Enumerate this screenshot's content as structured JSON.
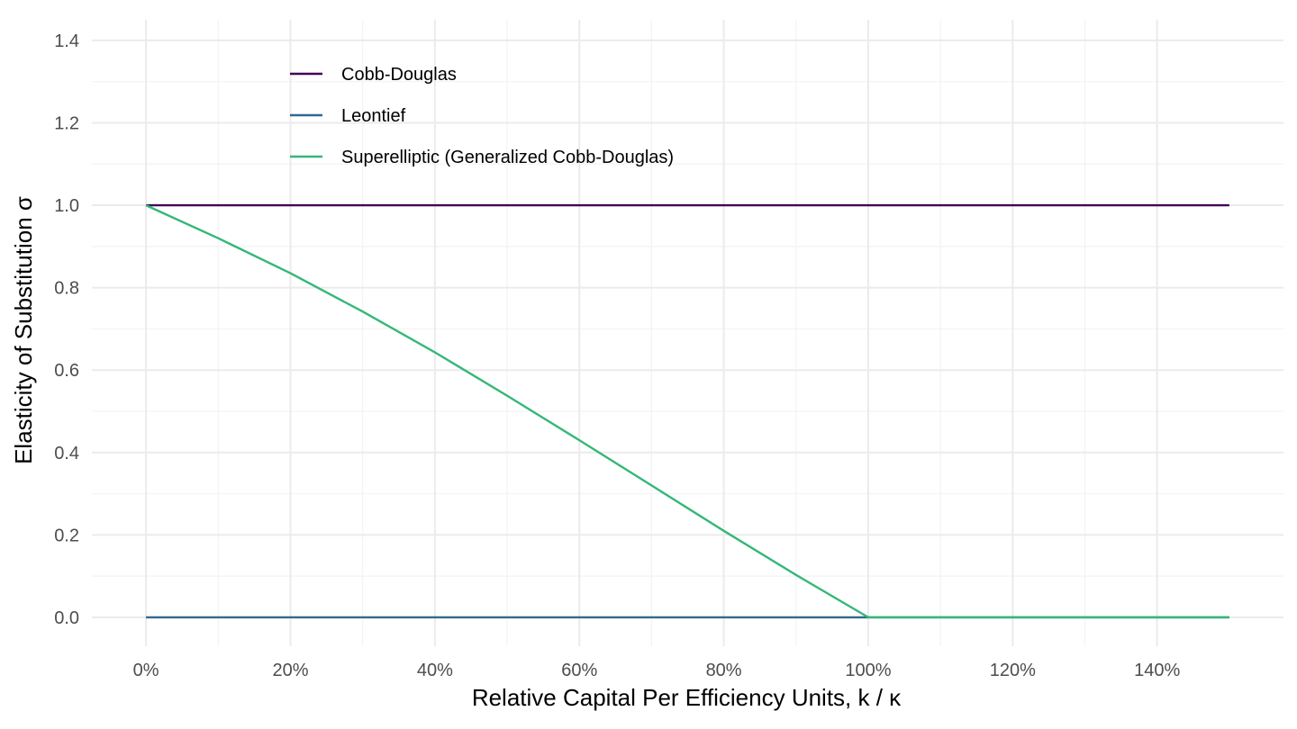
{
  "chart_data": {
    "type": "line",
    "title": "",
    "xlabel": "Relative Capital Per Efficiency Units, k / κ",
    "ylabel": "Elasticity of Substitution  σ",
    "xlim": [
      -0.075,
      1.575
    ],
    "ylim": [
      -0.07,
      1.45
    ],
    "x_ticks": [
      0,
      0.2,
      0.4,
      0.6,
      0.8,
      1.0,
      1.2,
      1.4
    ],
    "x_tick_labels": [
      "0%",
      "20%",
      "40%",
      "60%",
      "80%",
      "100%",
      "120%",
      "140%"
    ],
    "y_ticks": [
      0,
      0.2,
      0.4,
      0.6,
      0.8,
      1.0,
      1.2,
      1.4
    ],
    "y_tick_labels": [
      "0.0",
      "0.2",
      "0.4",
      "0.6",
      "0.8",
      "1.0",
      "1.2",
      "1.4"
    ],
    "grid": true,
    "legend_position": "top-left",
    "series": [
      {
        "name": "Cobb-Douglas",
        "color": "#440154",
        "x": [
          0,
          1.5
        ],
        "y": [
          1.0,
          1.0
        ]
      },
      {
        "name": "Leontief",
        "color": "#31688e",
        "x": [
          0,
          1.5
        ],
        "y": [
          0.0,
          0.0
        ]
      },
      {
        "name": "Superelliptic (Generalized Cobb-Douglas)",
        "color": "#35b779",
        "x": [
          0,
          0.1,
          0.2,
          0.3,
          0.4,
          0.5,
          0.6,
          0.7,
          0.8,
          0.9,
          1.0,
          1.1,
          1.2,
          1.3,
          1.4,
          1.5
        ],
        "y": [
          1.0,
          0.92,
          0.835,
          0.742,
          0.643,
          0.538,
          0.43,
          0.32,
          0.21,
          0.103,
          0.0,
          0.0,
          0.0,
          0.0,
          0.0,
          0.0
        ]
      }
    ]
  }
}
